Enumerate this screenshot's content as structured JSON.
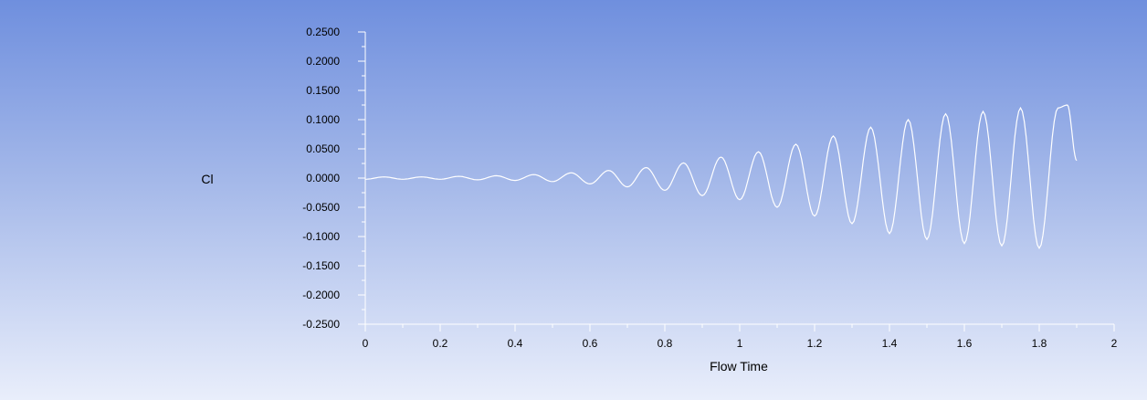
{
  "chart_data": {
    "type": "line",
    "title": "",
    "xlabel": "Flow Time",
    "ylabel": "Cl",
    "xlim": [
      0,
      2
    ],
    "ylim": [
      -0.25,
      0.25
    ],
    "xticks": [
      "0",
      "0.2",
      "0.4",
      "0.6",
      "0.8",
      "1",
      "1.2",
      "1.4",
      "1.6",
      "1.8",
      "2"
    ],
    "yticks": [
      "0.2500",
      "0.2000",
      "0.1500",
      "0.1000",
      "0.0500",
      "0.0000",
      "-0.0500",
      "-0.1000",
      "-0.1500",
      "-0.2000",
      "-0.2500"
    ],
    "grid": false,
    "series_color": "#ffffff",
    "series": [
      {
        "x": [
          0,
          0.05,
          0.1,
          0.15,
          0.2,
          0.25,
          0.3,
          0.35,
          0.4,
          0.45,
          0.5,
          0.55,
          0.6,
          0.65,
          0.7,
          0.75,
          0.8,
          0.85,
          0.9,
          0.95,
          1.0,
          1.05,
          1.1,
          1.15,
          1.2,
          1.25,
          1.3,
          1.35,
          1.4,
          1.45,
          1.5,
          1.55,
          1.6,
          1.65,
          1.7,
          1.75,
          1.8,
          1.85,
          1.875,
          1.9
        ],
        "y": [
          -0.002,
          0.002,
          -0.002,
          0.002,
          -0.002,
          0.003,
          -0.003,
          0.004,
          -0.004,
          0.006,
          -0.006,
          0.009,
          -0.01,
          0.013,
          -0.015,
          0.018,
          -0.021,
          0.026,
          -0.03,
          0.036,
          -0.037,
          0.045,
          -0.05,
          0.058,
          -0.065,
          0.072,
          -0.078,
          0.087,
          -0.095,
          0.1,
          -0.105,
          0.11,
          -0.112,
          0.114,
          -0.116,
          0.12,
          -0.12,
          0.12,
          0.125,
          0.03
        ]
      }
    ]
  }
}
